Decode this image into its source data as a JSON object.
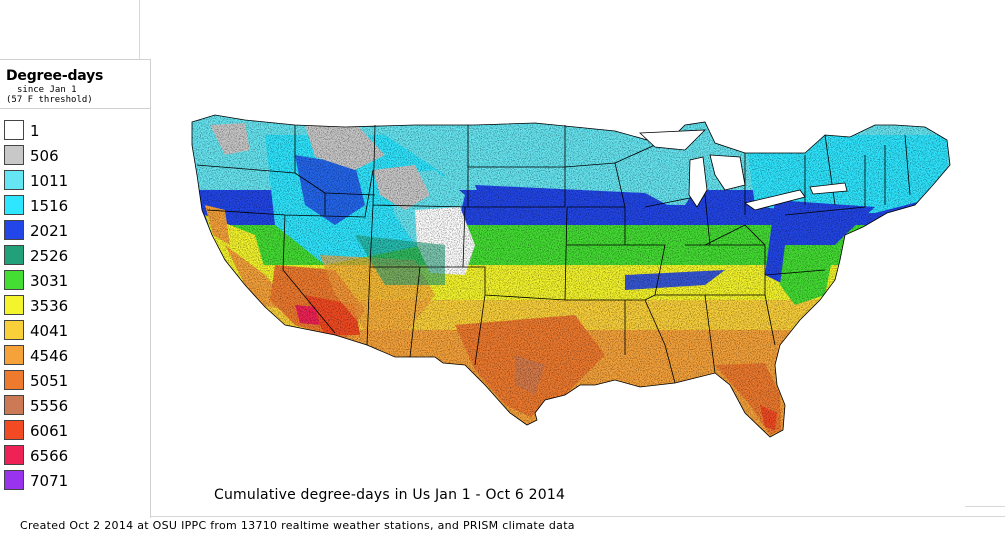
{
  "legend": {
    "title": "Degree-days",
    "subtitle_1": "since Jan 1",
    "subtitle_2": "(57 F threshold)",
    "items": [
      {
        "label": "1",
        "color": "#ffffff"
      },
      {
        "label": "506",
        "color": "#c8c8c8"
      },
      {
        "label": "1011",
        "color": "#66e6f2"
      },
      {
        "label": "1516",
        "color": "#2ee6ff"
      },
      {
        "label": "2021",
        "color": "#2246e8"
      },
      {
        "label": "2526",
        "color": "#22a07a"
      },
      {
        "label": "3031",
        "color": "#44dd33"
      },
      {
        "label": "3536",
        "color": "#f4f42c"
      },
      {
        "label": "4041",
        "color": "#fad03a"
      },
      {
        "label": "4546",
        "color": "#f6a23a"
      },
      {
        "label": "5051",
        "color": "#ee7a2e"
      },
      {
        "label": "5556",
        "color": "#cc7a55"
      },
      {
        "label": "6061",
        "color": "#f24a22"
      },
      {
        "label": "6566",
        "color": "#ee2255"
      },
      {
        "label": "7071",
        "color": "#9933ee"
      }
    ]
  },
  "map": {
    "title": "Cumulative degree-days in Us  Jan 1 - Oct 6 2014"
  },
  "footer": {
    "text": "Created Oct 2 2014 at OSU IPPC from 13710 realtime weather stations, and PRISM climate data"
  }
}
